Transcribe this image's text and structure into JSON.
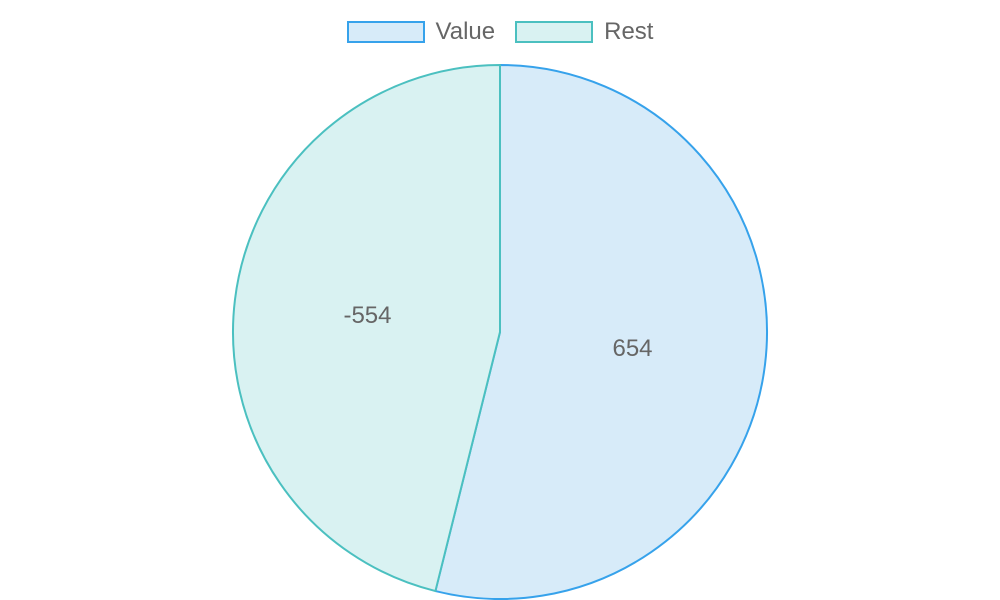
{
  "chart_data": {
    "type": "pie",
    "categories": [
      "Value",
      "Rest"
    ],
    "values": [
      654,
      -554
    ],
    "slice_angles_deg": [
      194,
      166
    ],
    "data_labels": [
      "654",
      "-554"
    ],
    "legend_position": "top",
    "colors": {
      "Value": {
        "fill": "#d7ebf9",
        "stroke": "#36a2eb"
      },
      "Rest": {
        "fill": "#d9f2f2",
        "stroke": "#4bc0c0"
      }
    }
  }
}
